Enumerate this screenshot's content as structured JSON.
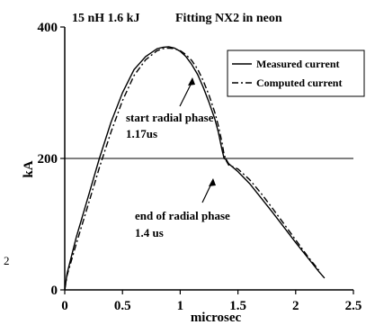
{
  "chart_data": {
    "type": "line",
    "title_left": "15 nH 1.6 kJ",
    "title_right": "Fitting NX2 in neon",
    "xlabel": "microsec",
    "ylabel": "kA",
    "xlim": [
      0,
      2.5
    ],
    "ylim": [
      0,
      400
    ],
    "x_ticks": [
      "0",
      "0.5",
      "1",
      "1.5",
      "2",
      "2.5"
    ],
    "y_ticks": [
      "0",
      "200",
      "400"
    ],
    "reference_line_y": 200,
    "grid": false,
    "legend_position": "top-right",
    "series": [
      {
        "name": "Measured current",
        "style": "solid",
        "color": "#000000",
        "x": [
          0,
          0.02,
          0.1,
          0.2,
          0.3,
          0.4,
          0.5,
          0.6,
          0.7,
          0.8,
          0.85,
          0.9,
          0.95,
          1.0,
          1.05,
          1.1,
          1.15,
          1.2,
          1.25,
          1.3,
          1.33,
          1.36,
          1.38,
          1.4,
          1.42,
          1.5,
          1.6,
          1.7,
          1.8,
          1.9,
          2.0,
          2.1,
          2.2,
          2.25
        ],
        "y": [
          0,
          25,
          80,
          140,
          200,
          255,
          300,
          335,
          355,
          367,
          369,
          370,
          368,
          363,
          355,
          343,
          328,
          308,
          285,
          260,
          240,
          215,
          200,
          198,
          192,
          180,
          162,
          140,
          118,
          95,
          72,
          50,
          28,
          18
        ]
      },
      {
        "name": "Computed current",
        "style": "dashed",
        "color": "#000000",
        "x": [
          0,
          0.02,
          0.1,
          0.2,
          0.3,
          0.4,
          0.5,
          0.6,
          0.7,
          0.8,
          0.85,
          0.9,
          0.95,
          1.0,
          1.05,
          1.1,
          1.15,
          1.2,
          1.25,
          1.3,
          1.33,
          1.36,
          1.38,
          1.4,
          1.42,
          1.5,
          1.6,
          1.7,
          1.8,
          1.9,
          2.0,
          2.1,
          2.2
        ],
        "y": [
          0,
          22,
          70,
          128,
          186,
          240,
          288,
          326,
          350,
          364,
          367,
          368,
          367,
          364,
          358,
          349,
          336,
          318,
          296,
          270,
          250,
          226,
          206,
          196,
          190,
          184,
          168,
          147,
          124,
          100,
          76,
          52,
          30
        ]
      }
    ],
    "annotations": [
      {
        "text": "start radial phase",
        "value": "1.17us",
        "arrow_to": [
          1.17,
          316
        ]
      },
      {
        "text": "end of radial phase",
        "value": "1.4 us",
        "arrow_to": [
          1.4,
          168
        ]
      }
    ],
    "stray_text": "2"
  }
}
